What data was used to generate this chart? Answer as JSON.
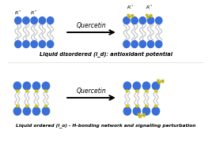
{
  "title_top": "Liquid disordered (l_d): antioxidant potential",
  "title_bottom": "Liquid ordered (l_o) - H-bonding network and signalling perturbation",
  "arrow_label": "Quercetin",
  "background_color": "#ffffff",
  "head_color": "#3a6fd8",
  "tail_color": "#b8b8b8",
  "chol_color": "#d4c800",
  "q_yellow": "#c8b800",
  "q_gray": "#a0a0a0",
  "fig_width": 2.68,
  "fig_height": 1.89,
  "dpi": 100
}
